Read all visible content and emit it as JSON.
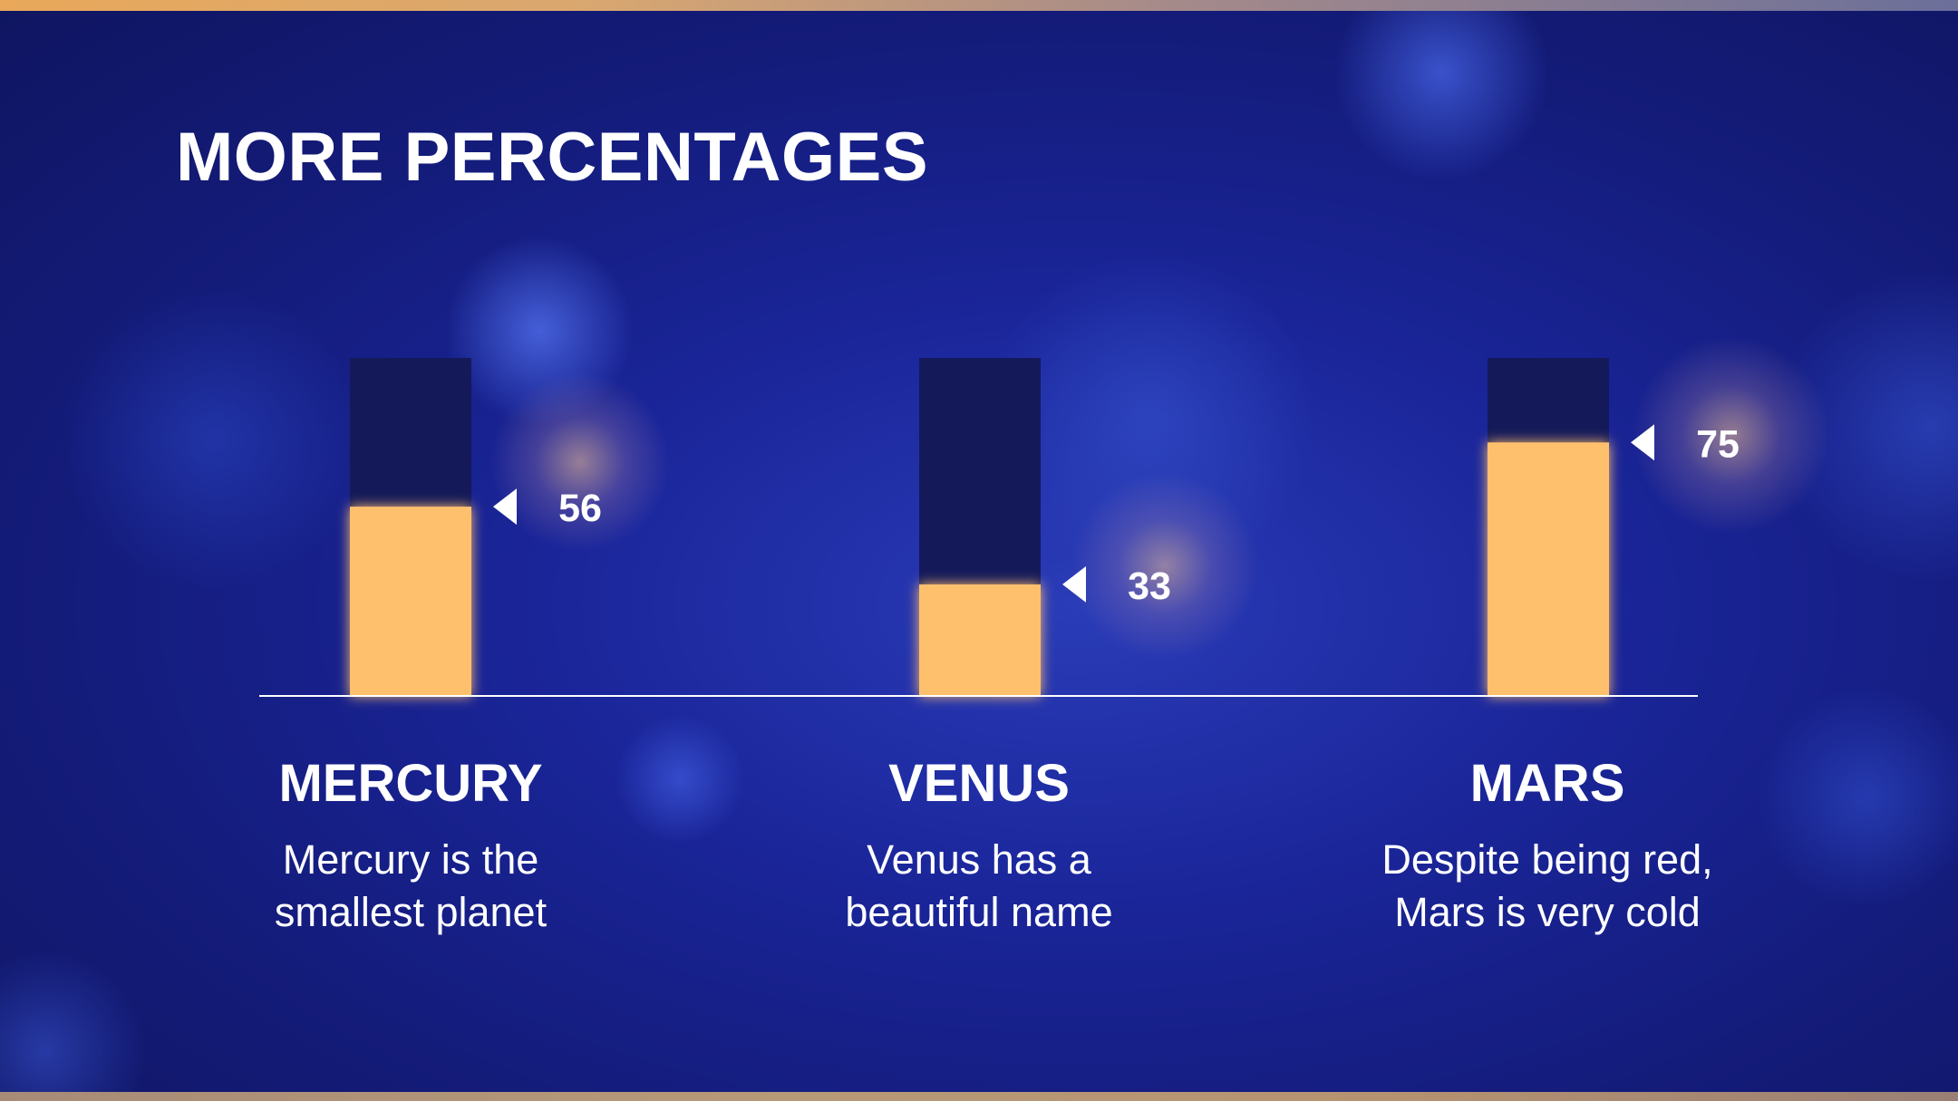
{
  "slide": {
    "title": "MORE PERCENTAGES"
  },
  "colors": {
    "background": "#1a2599",
    "bar_track": "#14195a",
    "bar_fill": "#ffc06e",
    "text": "#ffffff",
    "baseline": "#ffffff"
  },
  "chart_data": {
    "type": "bar",
    "title": "MORE PERCENTAGES",
    "categories": [
      "MERCURY",
      "VENUS",
      "MARS"
    ],
    "values": [
      56,
      33,
      75
    ],
    "ylim": [
      0,
      100
    ],
    "grid": false,
    "legend": "none"
  },
  "planets": [
    {
      "name": "MERCURY",
      "desc_line1": "Mercury is the",
      "desc_line2": "smallest planet"
    },
    {
      "name": "VENUS",
      "desc_line1": "Venus has a",
      "desc_line2": "beautiful name"
    },
    {
      "name": "MARS",
      "desc_line1": "Despite being red,",
      "desc_line2": "Mars is very cold"
    }
  ]
}
